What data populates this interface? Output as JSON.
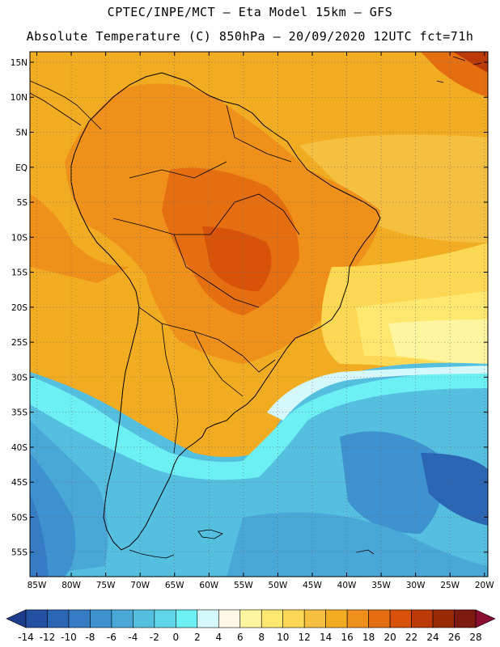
{
  "header": {
    "line1": "CPTEC/INPE/MCT –  Eta Model 15km – GFS",
    "line2": "Absolute Temperature (C) 850hPa – 20/09/2020 12UTC fct=71h"
  },
  "map": {
    "lat_labels": [
      "15N",
      "10N",
      "5N",
      "EQ",
      "5S",
      "10S",
      "15S",
      "20S",
      "25S",
      "30S",
      "35S",
      "40S",
      "45S",
      "50S",
      "55S"
    ],
    "lat_values": [
      15,
      10,
      5,
      0,
      -5,
      -10,
      -15,
      -20,
      -25,
      -30,
      -35,
      -40,
      -45,
      -50,
      -55
    ],
    "lon_labels": [
      "85W",
      "80W",
      "75W",
      "70W",
      "65W",
      "60W",
      "55W",
      "50W",
      "45W",
      "40W",
      "35W",
      "30W",
      "25W",
      "20W"
    ],
    "lon_values": [
      -85,
      -80,
      -75,
      -70,
      -65,
      -60,
      -55,
      -50,
      -45,
      -40,
      -35,
      -30,
      -25,
      -20
    ],
    "lon_range": [
      -86,
      -19.5
    ],
    "lat_range": [
      -58.5,
      16.5
    ]
  },
  "colorbar": {
    "labels": [
      "-14",
      "-12",
      "-10",
      "-8",
      "-6",
      "-4",
      "-2",
      "0",
      "2",
      "4",
      "6",
      "8",
      "10",
      "12",
      "14",
      "16",
      "18",
      "20",
      "22",
      "24",
      "26",
      "28"
    ],
    "colors": [
      "#1e3c8c",
      "#2350a0",
      "#2b66b4",
      "#357cc4",
      "#3f92d0",
      "#49a8d8",
      "#55bfe0",
      "#5fd5ea",
      "#6cf0f4",
      "#d4f8fc",
      "#fff8e6",
      "#fff5a0",
      "#ffe870",
      "#fcd855",
      "#f5c040",
      "#f2ac22",
      "#ef901a",
      "#e56f10",
      "#d8520a",
      "#bb3a08",
      "#982a06",
      "#7c1a10",
      "#8a0c30"
    ]
  }
}
